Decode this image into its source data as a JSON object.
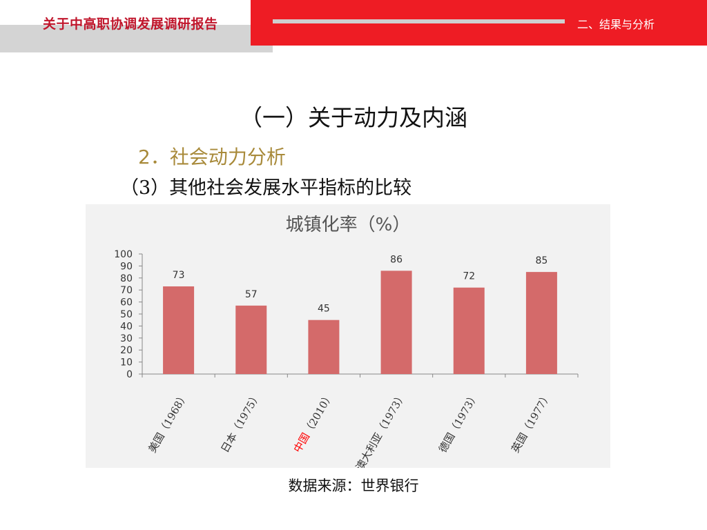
{
  "header": {
    "title": "关于中高职协调发展调研报告",
    "section": "二、结果与分析"
  },
  "main_heading": "（一）关于动力及内涵",
  "sub_heading": "2．社会动力分析",
  "sub_sub_heading": "（3）其他社会发展水平指标的比较",
  "source": "数据来源：世界银行",
  "colors": {
    "header_red": "#ee1c24",
    "bar": "#d46a6a",
    "highlight_label": "#ff0000"
  },
  "chart_data": {
    "type": "bar",
    "title": "城镇化率（%）",
    "categories": [
      {
        "name": "美国",
        "year": "（1968）",
        "highlight": false
      },
      {
        "name": "日本",
        "year": "（1975）",
        "highlight": false
      },
      {
        "name": "中国",
        "year": "（2010）",
        "highlight": true
      },
      {
        "name": "澳大利亚",
        "year": "（1973）",
        "highlight": false
      },
      {
        "name": "德国",
        "year": "（1973）",
        "highlight": false
      },
      {
        "name": "英国",
        "year": "（1977）",
        "highlight": false
      }
    ],
    "values": [
      73,
      57,
      45,
      86,
      72,
      85
    ],
    "ylim": [
      0,
      100
    ],
    "yticks": [
      0,
      10,
      20,
      30,
      40,
      50,
      60,
      70,
      80,
      90,
      100
    ],
    "grid": false,
    "legend": false,
    "data_labels": true
  }
}
